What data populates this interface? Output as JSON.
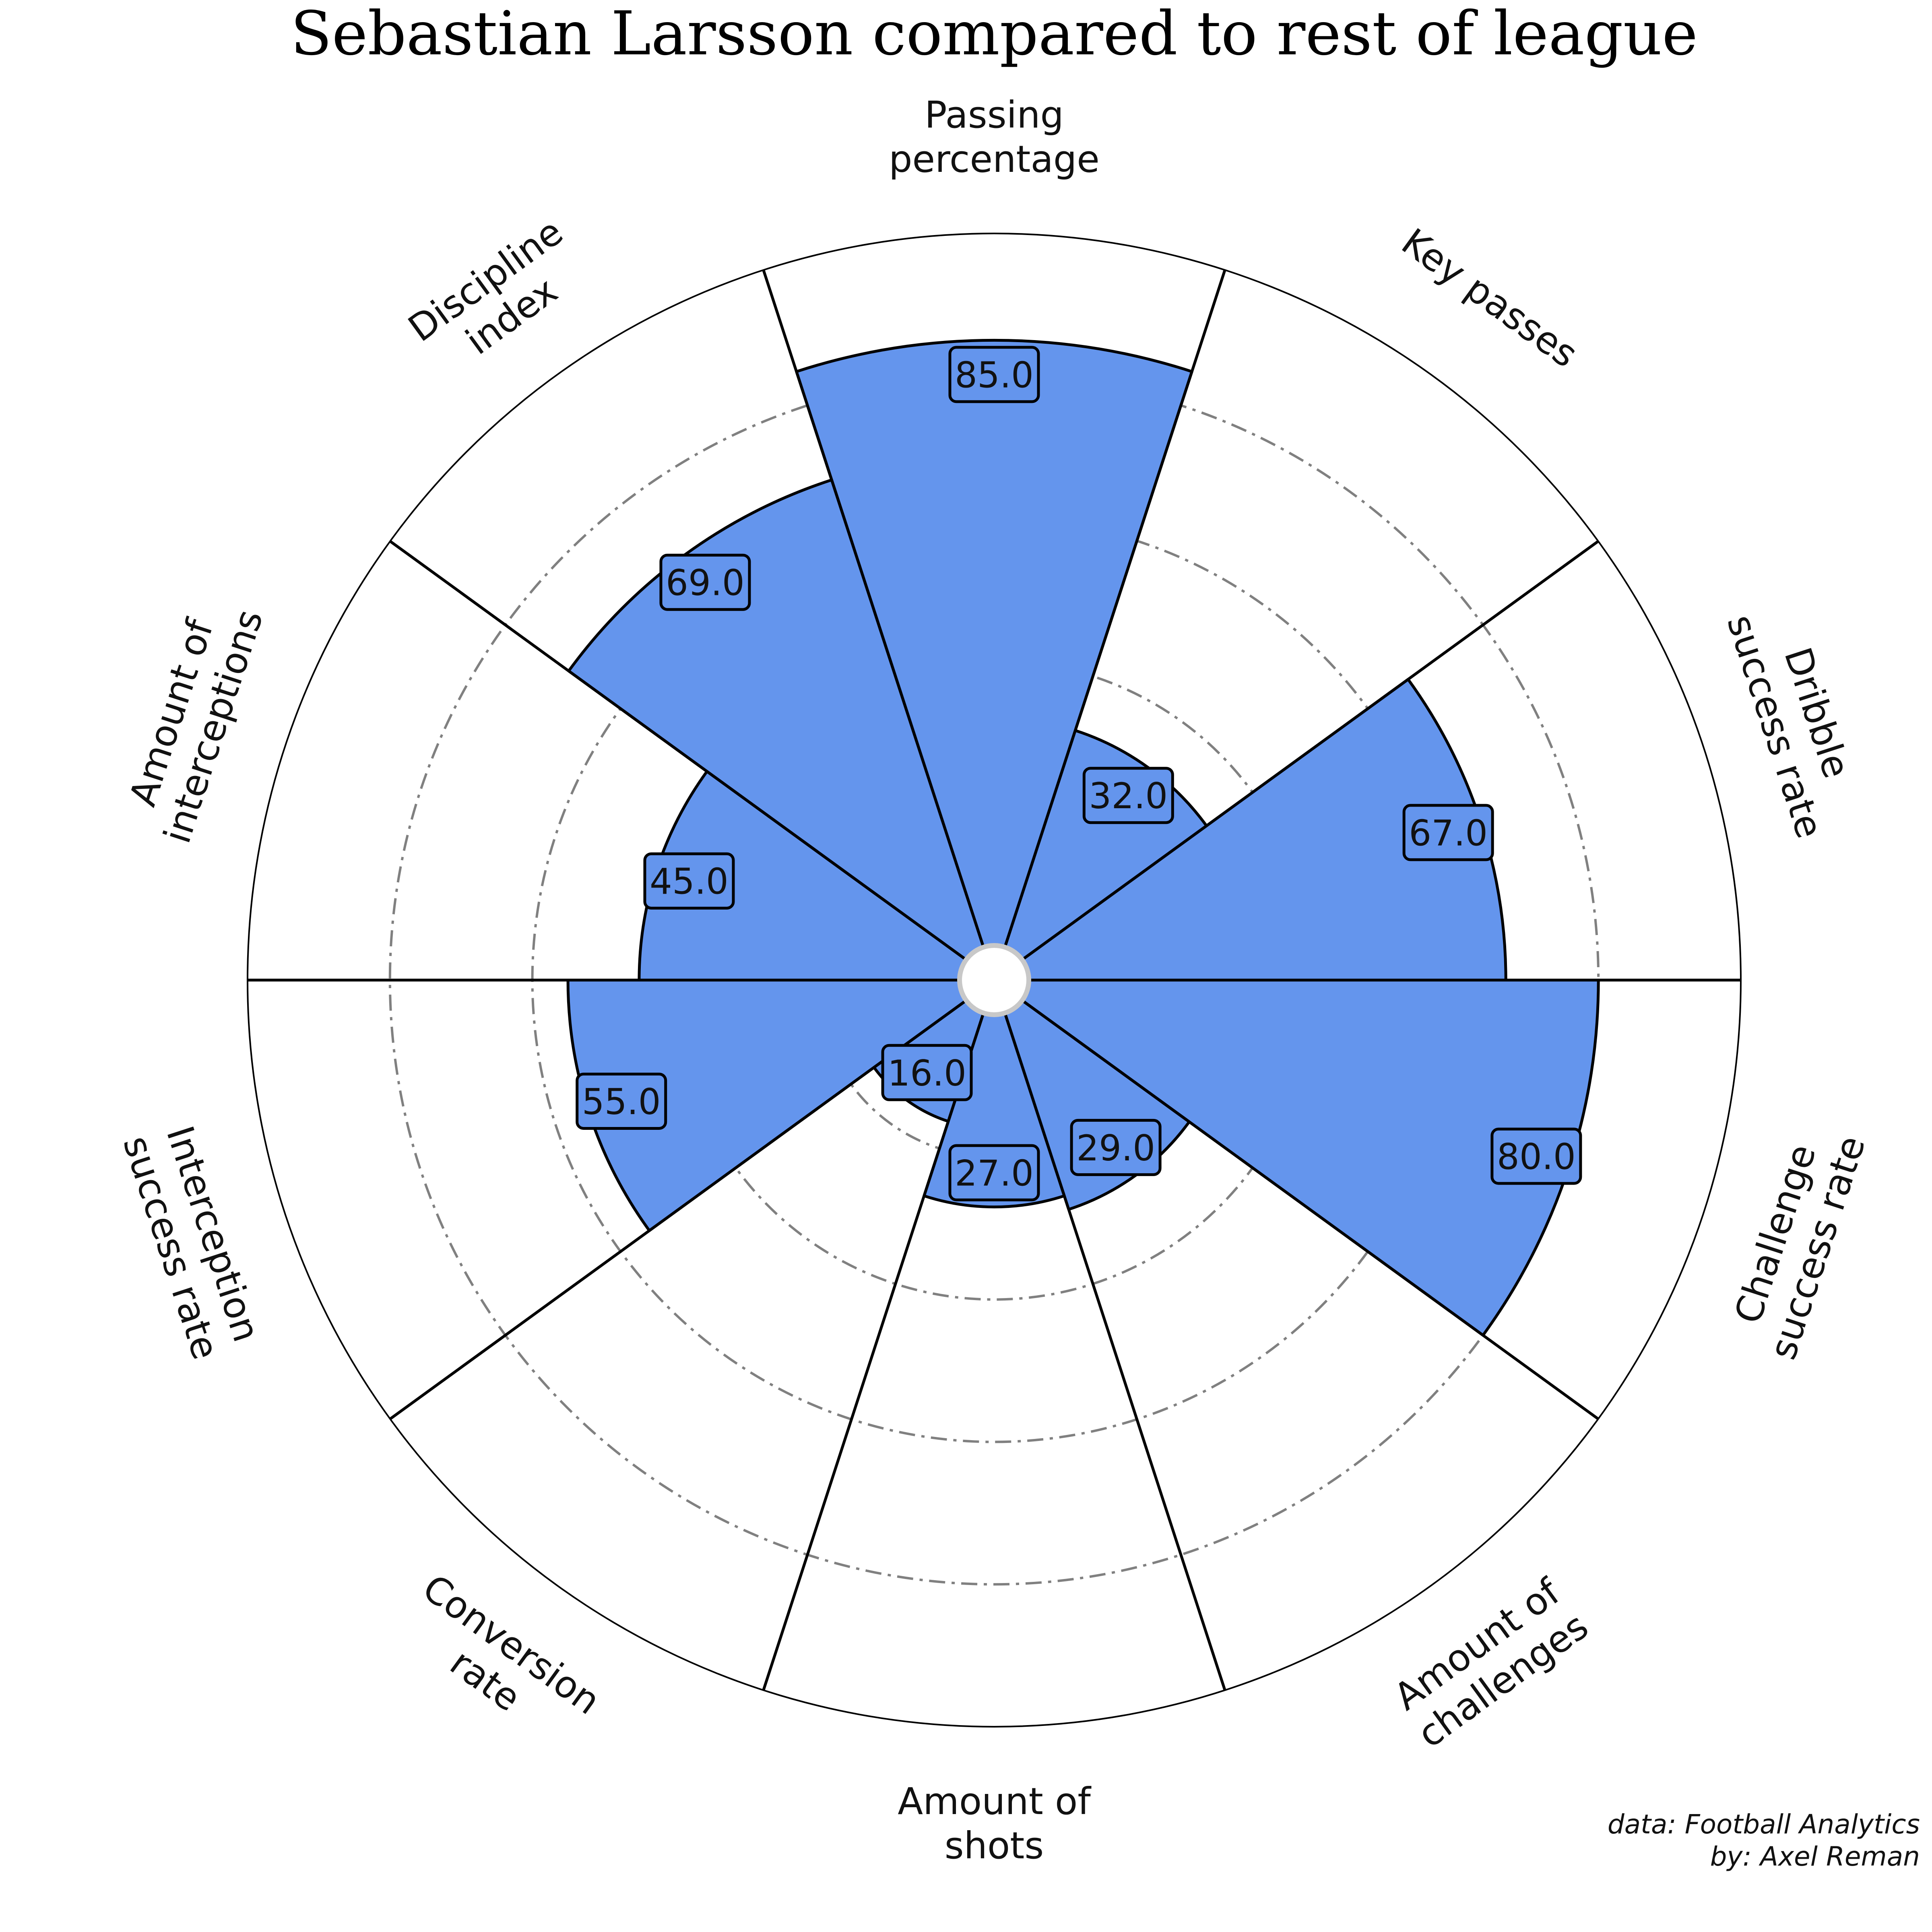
{
  "chart_data": {
    "type": "polar-bar",
    "title": "Sebastian Larsson compared to rest of league",
    "categories": [
      "Passing\npercentage",
      "Key passes",
      "Dribble\nsuccess rate",
      "Challenge\nsuccess rate",
      "Amount of\nchallenges",
      "Amount of\nshots",
      "Conversion\nrate",
      "Interception\nsuccess rate",
      "Amount of\ninterceptions",
      "Discipline\nindex"
    ],
    "values": [
      85.0,
      32.0,
      67.0,
      80.0,
      29.0,
      27.0,
      16.0,
      55.0,
      45.0,
      69.0
    ],
    "value_labels": [
      "85.0",
      "32.0",
      "67.0",
      "80.0",
      "29.0",
      "27.0",
      "16.0",
      "55.0",
      "45.0",
      "69.0"
    ],
    "rlim": [
      0,
      100
    ],
    "gridlines": [
      20,
      40,
      60,
      80
    ],
    "grid": true,
    "bar_color": "#6495ed",
    "edge_color": "#000000",
    "grid_color": "#808080"
  },
  "credits": {
    "line1": "data: Football Analytics",
    "line2": "by: Axel Reman"
  }
}
